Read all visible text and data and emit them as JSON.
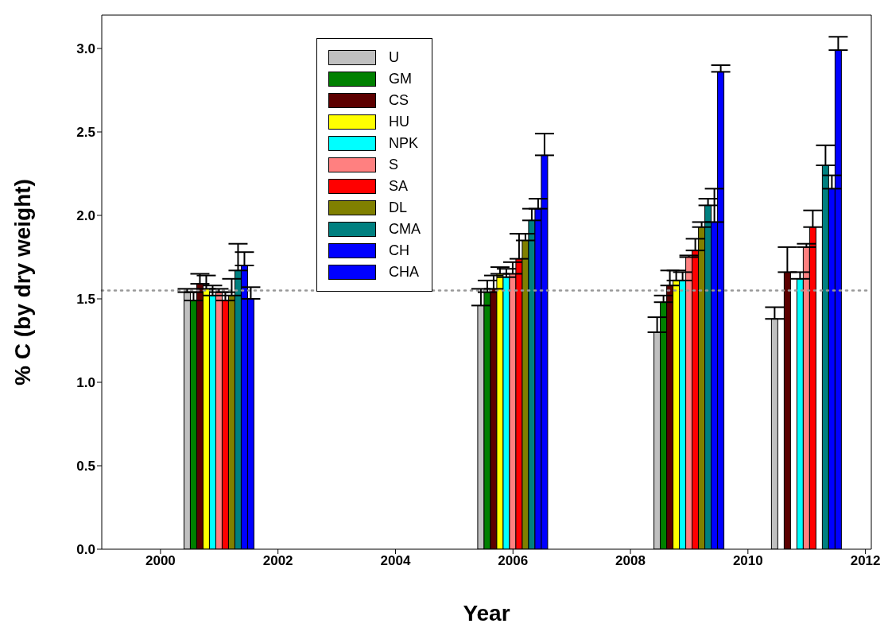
{
  "chart_data": {
    "type": "bar",
    "xlabel": "Year",
    "ylabel": "% C (by dry weight)",
    "x": [
      2001,
      2006,
      2009,
      2011
    ],
    "xlim": [
      1999,
      2012.1
    ],
    "xticks": [
      2000,
      2002,
      2004,
      2006,
      2008,
      2010,
      2012
    ],
    "ylim": [
      0,
      3.2
    ],
    "yticks": [
      {
        "value": 0,
        "label": "0.0"
      },
      {
        "value": 0.5,
        "label": "0.5"
      },
      {
        "value": 1,
        "label": "1.0"
      },
      {
        "value": 1.5,
        "label": "1.5"
      },
      {
        "value": 2,
        "label": "2.0"
      },
      {
        "value": 2.5,
        "label": "2.5"
      },
      {
        "value": 3,
        "label": "3.0"
      }
    ],
    "legend": "top left",
    "ref_lines": [
      {
        "axis": "y",
        "value": 1.55,
        "color": "#999999",
        "line_style": "dotted"
      }
    ],
    "series": [
      {
        "name": "U",
        "color": "#c0c0c0",
        "values": [
          1.54,
          1.46,
          1.3,
          1.38
        ],
        "errors": [
          [
            1.54,
            1.56
          ],
          [
            1.46,
            1.56
          ],
          [
            1.3,
            1.39
          ],
          [
            1.38,
            1.45
          ]
        ]
      },
      {
        "name": "GM",
        "color": "#008000",
        "values": [
          1.49,
          1.54,
          1.48,
          null
        ],
        "errors": [
          [
            1.49,
            1.54
          ],
          [
            1.54,
            1.61
          ],
          [
            1.48,
            1.52
          ],
          null
        ]
      },
      {
        "name": "CS",
        "color": "#5c0000",
        "values": [
          1.59,
          1.56,
          1.58,
          1.66
        ],
        "errors": [
          [
            1.59,
            1.65
          ],
          [
            1.56,
            1.64
          ],
          [
            1.58,
            1.67
          ],
          [
            1.66,
            1.81
          ]
        ]
      },
      {
        "name": "HU",
        "color": "#ffff00",
        "values": [
          1.56,
          1.65,
          1.61,
          null
        ],
        "errors": [
          [
            1.56,
            1.64
          ],
          [
            1.65,
            1.69
          ],
          [
            1.61,
            1.67
          ],
          null
        ]
      },
      {
        "name": "NPK",
        "color": "#00ffff",
        "values": [
          1.52,
          1.63,
          1.61,
          1.62
        ],
        "errors": [
          [
            1.52,
            1.58
          ],
          [
            1.63,
            1.68
          ],
          [
            1.61,
            1.66
          ],
          [
            1.62,
            1.66
          ]
        ]
      },
      {
        "name": "S",
        "color": "#ff8080",
        "values": [
          1.54,
          1.65,
          1.75,
          1.81
        ],
        "errors": [
          [
            1.54,
            1.56
          ],
          [
            1.65,
            1.72
          ],
          [
            1.75,
            1.76
          ],
          [
            1.81,
            1.83
          ]
        ]
      },
      {
        "name": "SA",
        "color": "#ff0000",
        "values": [
          1.49,
          1.74,
          1.79,
          1.93
        ],
        "errors": [
          [
            1.49,
            1.54
          ],
          [
            1.74,
            1.89
          ],
          [
            1.79,
            1.86
          ],
          [
            1.93,
            2.03
          ]
        ]
      },
      {
        "name": "DL",
        "color": "#808000",
        "values": [
          1.52,
          1.85,
          1.93,
          null
        ],
        "errors": [
          [
            1.52,
            1.62
          ],
          [
            1.85,
            1.89
          ],
          [
            1.93,
            1.96
          ],
          null
        ]
      },
      {
        "name": "CMA",
        "color": "#008080",
        "values": [
          1.67,
          1.97,
          2.06,
          2.3
        ],
        "errors": [
          [
            1.67,
            1.83
          ],
          [
            1.97,
            2.04
          ],
          [
            2.06,
            2.1
          ],
          [
            2.3,
            2.42
          ]
        ]
      },
      {
        "name": "CH",
        "color": "#0000ff",
        "values": [
          1.7,
          2.04,
          1.96,
          2.16
        ],
        "errors": [
          [
            1.7,
            1.78
          ],
          [
            2.04,
            2.1
          ],
          [
            1.96,
            2.16
          ],
          [
            2.16,
            2.24
          ]
        ]
      },
      {
        "name": "CHA",
        "color": "#0000ff",
        "values": [
          1.5,
          2.36,
          2.86,
          2.99
        ],
        "errors": [
          [
            1.5,
            1.57
          ],
          [
            2.36,
            2.49
          ],
          [
            2.86,
            2.9
          ],
          [
            2.99,
            3.07
          ]
        ]
      }
    ]
  }
}
